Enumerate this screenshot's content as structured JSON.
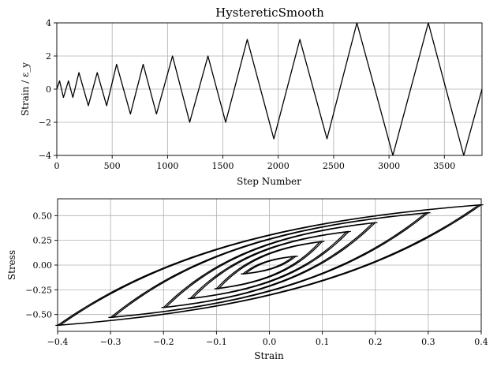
{
  "chart_data": [
    {
      "type": "line",
      "title": "HystereticSmooth",
      "xlabel": "Step Number",
      "ylabel": "Strain / ε_y",
      "xlim": [
        0,
        3840
      ],
      "ylim": [
        -4,
        4
      ],
      "xticks": [
        0,
        500,
        1000,
        1500,
        2000,
        2500,
        3000,
        3500
      ],
      "yticks": [
        -4,
        -2,
        0,
        2,
        4
      ],
      "grid": true,
      "series": [
        {
          "x": [
            0,
            25,
            60,
            105,
            145,
            200,
            285,
            365,
            450,
            540,
            665,
            780,
            900,
            1045,
            1200,
            1365,
            1525,
            1720,
            1960,
            2195,
            2440,
            2710,
            3035,
            3355,
            3675,
            3840
          ],
          "values": [
            0,
            0.5,
            -0.5,
            0.5,
            -0.5,
            1.0,
            -1.0,
            1.0,
            -1.0,
            1.5,
            -1.5,
            1.5,
            -1.5,
            2.0,
            -2.0,
            2.0,
            -2.0,
            3.0,
            -3.0,
            3.0,
            -3.0,
            4.0,
            -4.0,
            4.0,
            -4.0,
            0.0
          ]
        }
      ]
    },
    {
      "type": "line",
      "xlabel": "Strain",
      "ylabel": "Stress",
      "xlim": [
        -0.4,
        0.4
      ],
      "ylim": [
        -0.67,
        0.67
      ],
      "xticks": [
        -0.4,
        -0.3,
        -0.2,
        -0.1,
        0.0,
        0.1,
        0.2,
        0.3,
        0.4
      ],
      "yticks": [
        -0.5,
        -0.25,
        0.0,
        0.25,
        0.5
      ],
      "grid": true,
      "series": [
        {
          "loop_amplitudes": [
            0.05,
            0.1,
            0.15,
            0.2,
            0.3,
            0.4
          ],
          "loop_peak_stress": [
            0.09,
            0.24,
            0.34,
            0.43,
            0.53,
            0.61
          ]
        }
      ]
    }
  ]
}
